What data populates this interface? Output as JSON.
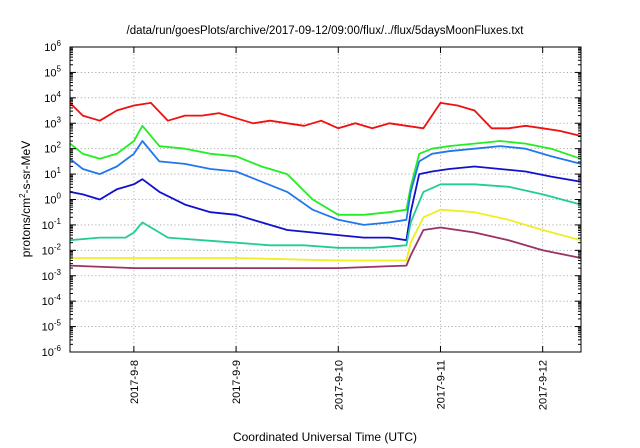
{
  "chart_data": {
    "type": "line",
    "title": "/data/run/goesPlots/archive/2017-09-12/09:00/flux/../flux/5daysMoonFluxes.txt",
    "xlabel": "Coordinated Universal Time (UTC)",
    "ylabel": {
      "prefix": "protons/cm",
      "superscript": "2",
      "suffix": "-s-sr-MeV"
    },
    "y_scale": "log",
    "ylim_exponent": [
      -6,
      6
    ],
    "y_ticks": [
      {
        "base": "10",
        "exp": "-6",
        "value": -6
      },
      {
        "base": "10",
        "exp": "-5",
        "value": -5
      },
      {
        "base": "10",
        "exp": "-4",
        "value": -4
      },
      {
        "base": "10",
        "exp": "-3",
        "value": -3
      },
      {
        "base": "10",
        "exp": "-2",
        "value": -2
      },
      {
        "base": "10",
        "exp": "-1",
        "value": -1
      },
      {
        "base": "10",
        "exp": "0",
        "value": 0
      },
      {
        "base": "10",
        "exp": "1",
        "value": 1
      },
      {
        "base": "10",
        "exp": "2",
        "value": 2
      },
      {
        "base": "10",
        "exp": "3",
        "value": 3
      },
      {
        "base": "10",
        "exp": "4",
        "value": 4
      },
      {
        "base": "10",
        "exp": "5",
        "value": 5
      },
      {
        "base": "10",
        "exp": "6",
        "value": 6
      }
    ],
    "xlim": [
      "2017-09-07 09:00",
      "2017-09-12 09:00"
    ],
    "x_ticks": [
      {
        "label": "2017-9-8",
        "value": "2017-09-08"
      },
      {
        "label": "2017-9-9",
        "value": "2017-09-09"
      },
      {
        "label": "2017-9-10",
        "value": "2017-09-10"
      },
      {
        "label": "2017-9-11",
        "value": "2017-09-11"
      },
      {
        "label": "2017-9-12",
        "value": "2017-09-12"
      }
    ],
    "grid": true,
    "legend": "none",
    "series": [
      {
        "color": "#ee1111",
        "x": [
          "2017-09-07 09:00",
          "2017-09-07 12:00",
          "2017-09-07 16:00",
          "2017-09-07 20:00",
          "2017-09-08 00:00",
          "2017-09-08 04:00",
          "2017-09-08 08:00",
          "2017-09-08 12:00",
          "2017-09-08 16:00",
          "2017-09-08 20:00",
          "2017-09-09 00:00",
          "2017-09-09 04:00",
          "2017-09-09 08:00",
          "2017-09-09 12:00",
          "2017-09-09 16:00",
          "2017-09-09 20:00",
          "2017-09-10 00:00",
          "2017-09-10 04:00",
          "2017-09-10 08:00",
          "2017-09-10 12:00",
          "2017-09-10 16:00",
          "2017-09-10 20:00",
          "2017-09-11 00:00",
          "2017-09-11 04:00",
          "2017-09-11 08:00",
          "2017-09-11 12:00",
          "2017-09-11 16:00",
          "2017-09-11 20:00",
          "2017-09-12 00:00",
          "2017-09-12 04:00",
          "2017-09-12 09:00"
        ],
        "log10_flux": [
          3.8,
          3.3,
          3.1,
          3.5,
          3.7,
          3.8,
          3.1,
          3.3,
          3.3,
          3.4,
          3.2,
          3.0,
          3.1,
          3.0,
          2.9,
          3.1,
          2.8,
          3.0,
          2.8,
          3.0,
          2.9,
          2.8,
          3.8,
          3.7,
          3.5,
          2.8,
          2.8,
          2.9,
          2.8,
          2.7,
          2.5
        ]
      },
      {
        "color": "#22ee22",
        "x": [
          "2017-09-07 09:00",
          "2017-09-07 12:00",
          "2017-09-07 16:00",
          "2017-09-07 20:00",
          "2017-09-08 00:00",
          "2017-09-08 02:00",
          "2017-09-08 06:00",
          "2017-09-08 12:00",
          "2017-09-08 18:00",
          "2017-09-09 00:00",
          "2017-09-09 06:00",
          "2017-09-09 12:00",
          "2017-09-09 18:00",
          "2017-09-10 00:00",
          "2017-09-10 06:00",
          "2017-09-10 12:00",
          "2017-09-10 16:00",
          "2017-09-10 17:00",
          "2017-09-10 19:00",
          "2017-09-10 22:00",
          "2017-09-11 02:00",
          "2017-09-11 08:00",
          "2017-09-11 14:00",
          "2017-09-11 20:00",
          "2017-09-12 02:00",
          "2017-09-12 09:00"
        ],
        "log10_flux": [
          2.2,
          1.8,
          1.6,
          1.8,
          2.3,
          2.9,
          2.1,
          2.0,
          1.8,
          1.7,
          1.3,
          1.0,
          0.0,
          -0.6,
          -0.6,
          -0.5,
          -0.4,
          0.5,
          1.8,
          2.0,
          2.1,
          2.2,
          2.3,
          2.2,
          2.0,
          1.6
        ]
      },
      {
        "color": "#2277ee",
        "x": [
          "2017-09-07 09:00",
          "2017-09-07 12:00",
          "2017-09-07 16:00",
          "2017-09-07 20:00",
          "2017-09-08 00:00",
          "2017-09-08 02:00",
          "2017-09-08 06:00",
          "2017-09-08 12:00",
          "2017-09-08 18:00",
          "2017-09-09 00:00",
          "2017-09-09 06:00",
          "2017-09-09 12:00",
          "2017-09-09 18:00",
          "2017-09-10 00:00",
          "2017-09-10 06:00",
          "2017-09-10 12:00",
          "2017-09-10 16:00",
          "2017-09-10 17:00",
          "2017-09-10 19:00",
          "2017-09-10 22:00",
          "2017-09-11 02:00",
          "2017-09-11 08:00",
          "2017-09-11 14:00",
          "2017-09-11 20:00",
          "2017-09-12 02:00",
          "2017-09-12 09:00"
        ],
        "log10_flux": [
          1.6,
          1.2,
          1.0,
          1.3,
          1.8,
          2.3,
          1.5,
          1.4,
          1.2,
          1.1,
          0.7,
          0.3,
          -0.4,
          -0.8,
          -1.0,
          -0.9,
          -0.8,
          0.3,
          1.5,
          1.8,
          1.9,
          2.0,
          2.1,
          2.0,
          1.7,
          1.4
        ]
      },
      {
        "color": "#1111cc",
        "x": [
          "2017-09-07 09:00",
          "2017-09-07 12:00",
          "2017-09-07 16:00",
          "2017-09-07 20:00",
          "2017-09-08 00:00",
          "2017-09-08 02:00",
          "2017-09-08 06:00",
          "2017-09-08 12:00",
          "2017-09-08 18:00",
          "2017-09-09 00:00",
          "2017-09-09 06:00",
          "2017-09-09 12:00",
          "2017-09-09 18:00",
          "2017-09-10 00:00",
          "2017-09-10 06:00",
          "2017-09-10 12:00",
          "2017-09-10 16:00",
          "2017-09-10 17:00",
          "2017-09-10 19:00",
          "2017-09-10 22:00",
          "2017-09-11 02:00",
          "2017-09-11 08:00",
          "2017-09-11 14:00",
          "2017-09-11 20:00",
          "2017-09-12 02:00",
          "2017-09-12 09:00"
        ],
        "log10_flux": [
          0.3,
          0.2,
          0.0,
          0.4,
          0.6,
          0.8,
          0.3,
          -0.2,
          -0.5,
          -0.6,
          -0.9,
          -1.2,
          -1.3,
          -1.4,
          -1.5,
          -1.5,
          -1.6,
          -0.5,
          1.0,
          1.1,
          1.2,
          1.3,
          1.2,
          1.1,
          0.9,
          0.7
        ]
      },
      {
        "color": "#22cc99",
        "x": [
          "2017-09-07 09:00",
          "2017-09-07 16:00",
          "2017-09-07 22:00",
          "2017-09-08 00:00",
          "2017-09-08 02:00",
          "2017-09-08 08:00",
          "2017-09-08 16:00",
          "2017-09-09 00:00",
          "2017-09-09 08:00",
          "2017-09-09 16:00",
          "2017-09-10 00:00",
          "2017-09-10 08:00",
          "2017-09-10 16:00",
          "2017-09-10 17:00",
          "2017-09-10 20:00",
          "2017-09-11 00:00",
          "2017-09-11 08:00",
          "2017-09-11 16:00",
          "2017-09-12 00:00",
          "2017-09-12 09:00"
        ],
        "log10_flux": [
          -1.6,
          -1.5,
          -1.5,
          -1.3,
          -0.9,
          -1.5,
          -1.6,
          -1.7,
          -1.8,
          -1.8,
          -1.9,
          -1.9,
          -1.8,
          -0.9,
          0.3,
          0.6,
          0.6,
          0.5,
          0.2,
          -0.2
        ]
      },
      {
        "color": "#eeee22",
        "x": [
          "2017-09-07 09:00",
          "2017-09-08 00:00",
          "2017-09-09 00:00",
          "2017-09-10 00:00",
          "2017-09-10 16:00",
          "2017-09-10 17:00",
          "2017-09-10 20:00",
          "2017-09-11 00:00",
          "2017-09-11 08:00",
          "2017-09-11 16:00",
          "2017-09-12 00:00",
          "2017-09-12 09:00"
        ],
        "log10_flux": [
          -2.3,
          -2.3,
          -2.3,
          -2.4,
          -2.4,
          -1.7,
          -0.7,
          -0.4,
          -0.5,
          -0.8,
          -1.2,
          -1.6
        ]
      },
      {
        "color": "#993366",
        "x": [
          "2017-09-07 09:00",
          "2017-09-08 00:00",
          "2017-09-09 00:00",
          "2017-09-10 00:00",
          "2017-09-10 16:00",
          "2017-09-10 17:00",
          "2017-09-10 20:00",
          "2017-09-11 00:00",
          "2017-09-11 08:00",
          "2017-09-11 16:00",
          "2017-09-12 00:00",
          "2017-09-12 09:00"
        ],
        "log10_flux": [
          -2.6,
          -2.7,
          -2.7,
          -2.7,
          -2.6,
          -2.2,
          -1.2,
          -1.1,
          -1.3,
          -1.6,
          -2.0,
          -2.3
        ]
      }
    ]
  }
}
